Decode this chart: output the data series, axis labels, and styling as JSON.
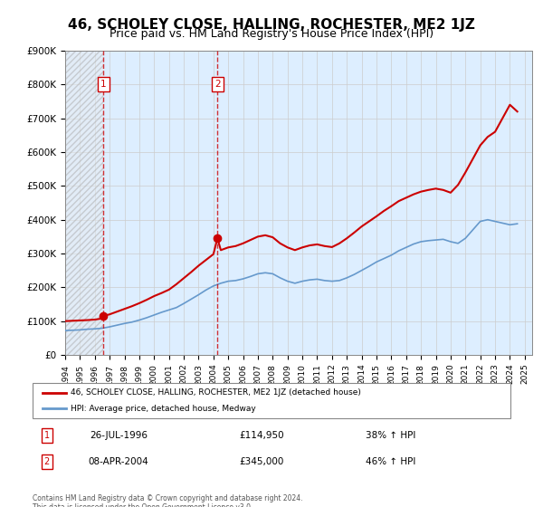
{
  "title": "46, SCHOLEY CLOSE, HALLING, ROCHESTER, ME2 1JZ",
  "subtitle": "Price paid vs. HM Land Registry's House Price Index (HPI)",
  "title_fontsize": 11,
  "subtitle_fontsize": 9,
  "ylabel": "",
  "xlabel": "",
  "ylim": [
    0,
    900000
  ],
  "xlim_start": 1994.0,
  "xlim_end": 2025.5,
  "yticks": [
    0,
    100000,
    200000,
    300000,
    400000,
    500000,
    600000,
    700000,
    800000,
    900000
  ],
  "ytick_labels": [
    "£0",
    "£100K",
    "£200K",
    "£300K",
    "£400K",
    "£500K",
    "£600K",
    "£700K",
    "£800K",
    "£900K"
  ],
  "xticks": [
    1994,
    1995,
    1996,
    1997,
    1998,
    1999,
    2000,
    2001,
    2002,
    2003,
    2004,
    2005,
    2006,
    2007,
    2008,
    2009,
    2010,
    2011,
    2012,
    2013,
    2014,
    2015,
    2016,
    2017,
    2018,
    2019,
    2020,
    2021,
    2022,
    2023,
    2024,
    2025
  ],
  "red_line_color": "#cc0000",
  "blue_line_color": "#6699cc",
  "hatch_color": "#cccccc",
  "grid_color": "#cccccc",
  "bg_color": "#ddeeff",
  "hatch_bg": "#e8e8e8",
  "transaction1_x": 1996.57,
  "transaction1_y": 114950,
  "transaction1_label": "1",
  "transaction1_date": "26-JUL-1996",
  "transaction1_price": "£114,950",
  "transaction1_hpi": "38% ↑ HPI",
  "transaction2_x": 2004.27,
  "transaction2_y": 345000,
  "transaction2_label": "2",
  "transaction2_date": "08-APR-2004",
  "transaction2_price": "£345,000",
  "transaction2_hpi": "46% ↑ HPI",
  "legend_line1": "46, SCHOLEY CLOSE, HALLING, ROCHESTER, ME2 1JZ (detached house)",
  "legend_line2": "HPI: Average price, detached house, Medway",
  "footer": "Contains HM Land Registry data © Crown copyright and database right 2024.\nThis data is licensed under the Open Government Licence v3.0.",
  "hpi_x": [
    1994,
    1994.5,
    1995,
    1995.5,
    1996,
    1996.5,
    1997,
    1997.5,
    1998,
    1998.5,
    1999,
    1999.5,
    2000,
    2000.5,
    2001,
    2001.5,
    2002,
    2002.5,
    2003,
    2003.5,
    2004,
    2004.5,
    2005,
    2005.5,
    2006,
    2006.5,
    2007,
    2007.5,
    2008,
    2008.5,
    2009,
    2009.5,
    2010,
    2010.5,
    2011,
    2011.5,
    2012,
    2012.5,
    2013,
    2013.5,
    2014,
    2014.5,
    2015,
    2015.5,
    2016,
    2016.5,
    2017,
    2017.5,
    2018,
    2018.5,
    2019,
    2019.5,
    2020,
    2020.5,
    2021,
    2021.5,
    2022,
    2022.5,
    2023,
    2023.5,
    2024,
    2024.5
  ],
  "hpi_y": [
    72000,
    73000,
    74000,
    76000,
    77000,
    79000,
    83000,
    88000,
    93000,
    97000,
    103000,
    110000,
    118000,
    126000,
    133000,
    140000,
    152000,
    165000,
    178000,
    192000,
    204000,
    212000,
    218000,
    220000,
    225000,
    232000,
    240000,
    243000,
    240000,
    228000,
    218000,
    212000,
    218000,
    222000,
    224000,
    220000,
    218000,
    220000,
    228000,
    238000,
    250000,
    262000,
    275000,
    285000,
    295000,
    308000,
    318000,
    328000,
    335000,
    338000,
    340000,
    342000,
    335000,
    330000,
    345000,
    370000,
    395000,
    400000,
    395000,
    390000,
    385000,
    388000
  ],
  "red_x": [
    1994,
    1994.5,
    1995,
    1995.5,
    1996,
    1996.4,
    1996.57,
    1997,
    1997.5,
    1998,
    1998.5,
    1999,
    1999.5,
    2000,
    2000.5,
    2001,
    2001.5,
    2002,
    2002.5,
    2003,
    2003.5,
    2004,
    2004.27,
    2004.5,
    2005,
    2005.5,
    2006,
    2006.5,
    2007,
    2007.5,
    2008,
    2008.5,
    2009,
    2009.5,
    2010,
    2010.5,
    2011,
    2011.5,
    2012,
    2012.5,
    2013,
    2013.5,
    2014,
    2014.5,
    2015,
    2015.5,
    2016,
    2016.5,
    2017,
    2017.5,
    2018,
    2018.5,
    2019,
    2019.5,
    2020,
    2020.5,
    2021,
    2021.5,
    2022,
    2022.5,
    2023,
    2023.5,
    2024,
    2024.5
  ],
  "red_y": [
    100000,
    101000,
    102000,
    103000,
    104500,
    107000,
    114950,
    120000,
    128000,
    136000,
    144000,
    153000,
    163000,
    174000,
    183000,
    193000,
    209000,
    227000,
    245000,
    264000,
    281000,
    298000,
    345000,
    310000,
    318000,
    322000,
    330000,
    340000,
    350000,
    354000,
    348000,
    330000,
    318000,
    310000,
    318000,
    324000,
    327000,
    322000,
    319000,
    330000,
    345000,
    362000,
    380000,
    395000,
    410000,
    426000,
    440000,
    455000,
    465000,
    475000,
    483000,
    488000,
    492000,
    488000,
    480000,
    503000,
    540000,
    580000,
    620000,
    645000,
    660000,
    700000,
    740000,
    720000
  ]
}
